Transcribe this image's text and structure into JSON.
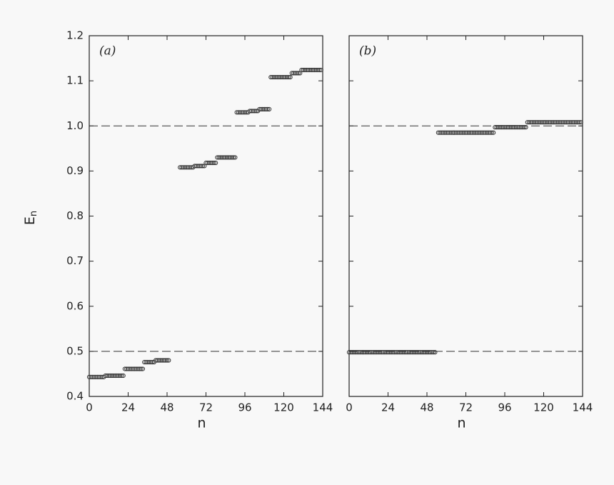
{
  "chart_data": [
    {
      "type": "scatter",
      "panel_label": "(a)",
      "x_label": "n",
      "y_label": "E",
      "y_label_subscript": "n",
      "xlim": [
        0,
        144
      ],
      "xticks": [
        0,
        24,
        48,
        72,
        96,
        120,
        144
      ],
      "ylim": [
        0.4,
        1.2
      ],
      "yticks": [
        0.4,
        0.5,
        0.6,
        0.7,
        0.8,
        0.9,
        {
          "value": 1,
          "label": "1.0"
        },
        1.1,
        1.2
      ],
      "ytick_labels": true,
      "hlines": [
        0.5,
        1.0
      ],
      "color": "#333333",
      "x": [
        0,
        1,
        2,
        3,
        4,
        5,
        6,
        7,
        8,
        9,
        10,
        11,
        12,
        13,
        14,
        15,
        16,
        17,
        18,
        19,
        20,
        21,
        22,
        23,
        24,
        25,
        26,
        27,
        28,
        29,
        30,
        31,
        32,
        33,
        34,
        35,
        36,
        37,
        38,
        39,
        40,
        41,
        42,
        43,
        44,
        45,
        46,
        47,
        48,
        49,
        56,
        57,
        58,
        59,
        60,
        61,
        62,
        63,
        64,
        65,
        66,
        67,
        68,
        69,
        70,
        71,
        72,
        73,
        74,
        75,
        76,
        77,
        78,
        79,
        80,
        81,
        82,
        83,
        84,
        85,
        86,
        87,
        88,
        89,
        90,
        91,
        92,
        93,
        94,
        95,
        96,
        97,
        98,
        99,
        100,
        101,
        102,
        103,
        104,
        105,
        106,
        107,
        108,
        109,
        110,
        111,
        112,
        113,
        114,
        115,
        116,
        117,
        118,
        119,
        120,
        121,
        122,
        123,
        124,
        125,
        126,
        127,
        128,
        129,
        130,
        131,
        132,
        133,
        134,
        135,
        136,
        137,
        138,
        139,
        140,
        141,
        142,
        143
      ],
      "values": [
        0.443,
        0.443,
        0.443,
        0.443,
        0.443,
        0.443,
        0.443,
        0.443,
        0.443,
        0.443,
        0.446,
        0.446,
        0.446,
        0.446,
        0.446,
        0.446,
        0.446,
        0.446,
        0.446,
        0.446,
        0.446,
        0.446,
        0.461,
        0.461,
        0.461,
        0.461,
        0.461,
        0.461,
        0.461,
        0.461,
        0.461,
        0.461,
        0.461,
        0.461,
        0.476,
        0.476,
        0.476,
        0.476,
        0.476,
        0.476,
        0.476,
        0.48,
        0.48,
        0.48,
        0.48,
        0.48,
        0.48,
        0.48,
        0.48,
        0.48,
        0.908,
        0.908,
        0.908,
        0.908,
        0.908,
        0.908,
        0.908,
        0.908,
        0.908,
        0.911,
        0.911,
        0.911,
        0.911,
        0.911,
        0.911,
        0.911,
        0.918,
        0.918,
        0.918,
        0.918,
        0.918,
        0.918,
        0.918,
        0.93,
        0.93,
        0.93,
        0.93,
        0.93,
        0.93,
        0.93,
        0.93,
        0.93,
        0.93,
        0.93,
        0.93,
        1.03,
        1.03,
        1.03,
        1.03,
        1.03,
        1.03,
        1.03,
        1.03,
        1.033,
        1.033,
        1.033,
        1.033,
        1.033,
        1.033,
        1.037,
        1.037,
        1.037,
        1.037,
        1.037,
        1.037,
        1.037,
        1.108,
        1.108,
        1.108,
        1.108,
        1.108,
        1.108,
        1.108,
        1.108,
        1.108,
        1.108,
        1.108,
        1.108,
        1.108,
        1.117,
        1.117,
        1.117,
        1.117,
        1.117,
        1.117,
        1.124,
        1.124,
        1.124,
        1.124,
        1.124,
        1.124,
        1.124,
        1.124,
        1.124,
        1.124,
        1.124,
        1.124,
        1.124
      ]
    },
    {
      "type": "scatter",
      "panel_label": "(b)",
      "x_label": "n",
      "xlim": [
        0,
        144
      ],
      "xticks": [
        0,
        24,
        48,
        72,
        96,
        120,
        144
      ],
      "ylim": [
        0.4,
        1.2
      ],
      "yticks": [
        0.4,
        0.5,
        0.6,
        0.7,
        0.8,
        0.9,
        {
          "value": 1,
          "label": "1.0"
        },
        1.1,
        1.2
      ],
      "ytick_labels": false,
      "hlines": [
        0.5,
        1.0
      ],
      "color": "#333333",
      "x": [
        0,
        1,
        2,
        3,
        4,
        5,
        6,
        7,
        8,
        9,
        10,
        11,
        12,
        13,
        14,
        15,
        16,
        17,
        18,
        19,
        20,
        21,
        22,
        23,
        24,
        25,
        26,
        27,
        28,
        29,
        30,
        31,
        32,
        33,
        34,
        35,
        36,
        37,
        38,
        39,
        40,
        41,
        42,
        43,
        44,
        45,
        46,
        47,
        48,
        49,
        50,
        51,
        52,
        53,
        55,
        56,
        57,
        58,
        59,
        60,
        61,
        62,
        63,
        64,
        65,
        66,
        67,
        68,
        69,
        70,
        71,
        72,
        73,
        74,
        75,
        76,
        77,
        78,
        79,
        80,
        81,
        82,
        83,
        84,
        85,
        86,
        87,
        88,
        89,
        90,
        91,
        92,
        93,
        94,
        95,
        96,
        97,
        98,
        99,
        100,
        101,
        102,
        103,
        104,
        105,
        106,
        107,
        108,
        109,
        110,
        111,
        112,
        113,
        114,
        115,
        116,
        117,
        118,
        119,
        120,
        121,
        122,
        123,
        124,
        125,
        126,
        127,
        128,
        129,
        130,
        131,
        132,
        133,
        134,
        135,
        136,
        137,
        138,
        139,
        140,
        141,
        142,
        143
      ],
      "values": [
        0.498,
        0.498,
        0.498,
        0.498,
        0.498,
        0.498,
        0.498,
        0.498,
        0.498,
        0.498,
        0.498,
        0.498,
        0.498,
        0.498,
        0.498,
        0.498,
        0.498,
        0.498,
        0.498,
        0.498,
        0.498,
        0.498,
        0.498,
        0.498,
        0.498,
        0.498,
        0.498,
        0.498,
        0.498,
        0.498,
        0.498,
        0.498,
        0.498,
        0.498,
        0.498,
        0.498,
        0.498,
        0.498,
        0.498,
        0.498,
        0.498,
        0.498,
        0.498,
        0.498,
        0.498,
        0.498,
        0.498,
        0.498,
        0.498,
        0.498,
        0.498,
        0.498,
        0.498,
        0.498,
        0.985,
        0.985,
        0.985,
        0.985,
        0.985,
        0.985,
        0.985,
        0.985,
        0.985,
        0.985,
        0.985,
        0.985,
        0.985,
        0.985,
        0.985,
        0.985,
        0.985,
        0.985,
        0.985,
        0.985,
        0.985,
        0.985,
        0.985,
        0.985,
        0.985,
        0.985,
        0.985,
        0.985,
        0.985,
        0.985,
        0.985,
        0.985,
        0.985,
        0.985,
        0.985,
        0.997,
        0.997,
        0.997,
        0.997,
        0.997,
        0.997,
        0.997,
        0.997,
        0.997,
        0.997,
        0.997,
        0.997,
        0.997,
        0.997,
        0.997,
        0.997,
        0.997,
        0.997,
        0.997,
        0.997,
        1.008,
        1.008,
        1.008,
        1.008,
        1.008,
        1.008,
        1.008,
        1.008,
        1.008,
        1.008,
        1.008,
        1.008,
        1.008,
        1.008,
        1.008,
        1.008,
        1.008,
        1.008,
        1.008,
        1.008,
        1.008,
        1.008,
        1.008,
        1.008,
        1.008,
        1.008,
        1.008,
        1.008,
        1.008,
        1.008,
        1.008,
        1.008,
        1.008,
        1.008
      ]
    }
  ]
}
